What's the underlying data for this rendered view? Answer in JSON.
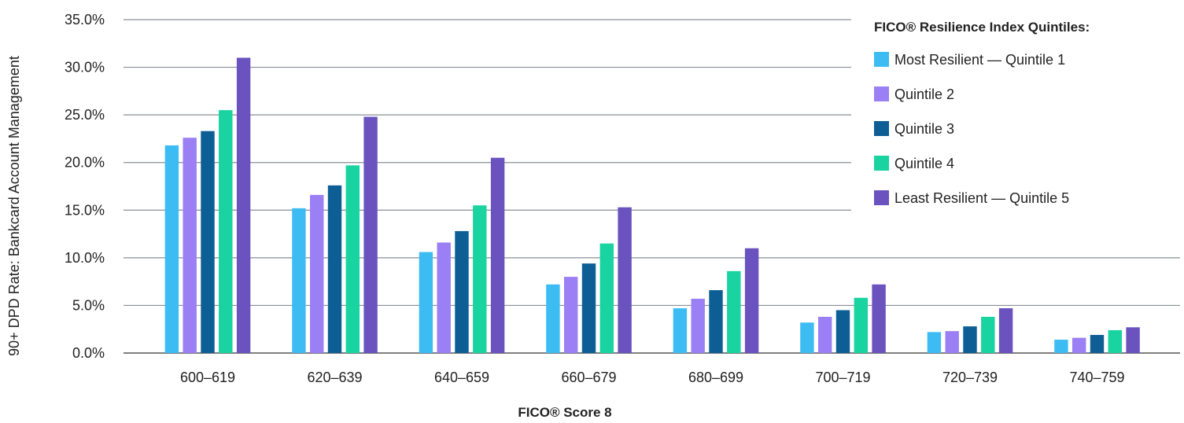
{
  "chart_data": {
    "type": "bar",
    "title": "",
    "xlabel": "FICO® Score 8",
    "ylabel": "90+ DPD Rate: Bankcard Account Management",
    "ylim": [
      0,
      35
    ],
    "yticks": [
      "35.0%",
      "30.0%",
      "25.0%",
      "20.0%",
      "15.0%",
      "10.0%",
      "5.0%",
      "0.0%"
    ],
    "grid": true,
    "legend_title": "FICO® Resilience Index Quintiles:",
    "legend_position": "top-right",
    "categories": [
      "600–619",
      "620–639",
      "640–659",
      "660–679",
      "680–699",
      "700–719",
      "720–739",
      "740–759"
    ],
    "series": [
      {
        "name": "Most Resilient — Quintile 1",
        "color": "#3dbcf3",
        "values": [
          21.8,
          15.2,
          10.6,
          7.2,
          4.7,
          3.2,
          2.2,
          1.4
        ]
      },
      {
        "name": "Quintile 2",
        "color": "#9b7ff4",
        "values": [
          22.6,
          16.6,
          11.6,
          8.0,
          5.7,
          3.8,
          2.3,
          1.6
        ]
      },
      {
        "name": "Quintile 3",
        "color": "#0d5e94",
        "values": [
          23.3,
          17.6,
          12.8,
          9.4,
          6.6,
          4.5,
          2.8,
          1.9
        ]
      },
      {
        "name": "Quintile 4",
        "color": "#19d3a0",
        "values": [
          25.5,
          19.7,
          15.5,
          11.5,
          8.6,
          5.8,
          3.8,
          2.4
        ]
      },
      {
        "name": "Least Resilient — Quintile 5",
        "color": "#6a52bf",
        "values": [
          31.0,
          24.8,
          20.5,
          15.3,
          11.0,
          7.2,
          4.7,
          2.7
        ]
      }
    ]
  }
}
